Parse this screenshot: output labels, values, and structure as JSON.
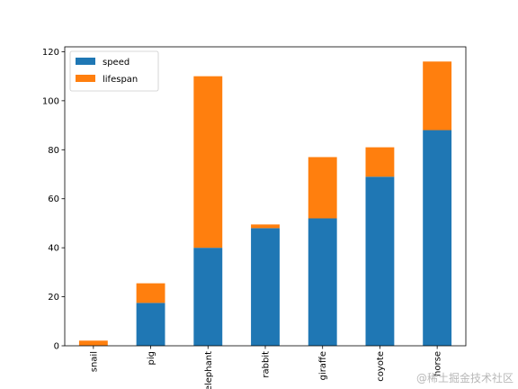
{
  "chart_data": {
    "type": "bar",
    "stacked": true,
    "categories": [
      "snail",
      "pig",
      "elephant",
      "rabbit",
      "giraffe",
      "coyote",
      "horse"
    ],
    "series": [
      {
        "name": "speed",
        "color": "#1f77b4",
        "values": [
          0.1,
          17.5,
          40,
          48,
          52,
          69,
          88
        ]
      },
      {
        "name": "lifespan",
        "color": "#ff7f0e",
        "values": [
          2,
          8,
          70,
          1.5,
          25,
          12,
          28
        ]
      }
    ],
    "xlabel": "",
    "ylabel": "",
    "ylim": [
      0,
      122
    ],
    "yticks": [
      0,
      20,
      40,
      60,
      80,
      100,
      120
    ],
    "grid": false,
    "legend_position": "top-left"
  },
  "watermark": {
    "text": "@稀土掘金技术社区"
  }
}
